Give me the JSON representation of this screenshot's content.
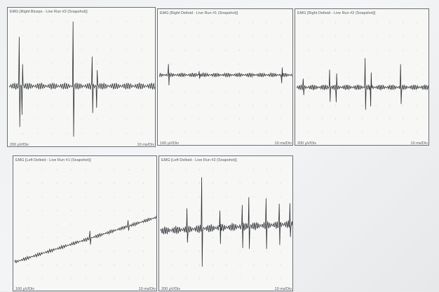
{
  "panels": [
    {
      "title": "EMG [Right Biceps - Live Run #3 (Snapshot)]",
      "y_scale": "200 µV/Div",
      "x_scale": "10 ms/Div"
    },
    {
      "title": "EMG [Right Deltoid - Live Run #1 (Snapshot)]",
      "y_scale": "100 µV/Div",
      "x_scale": "10 ms/Div"
    },
    {
      "title": "EMG [Right Deltoid - Live Run #2 (Snapshot)]",
      "y_scale": "200 µV/Div",
      "x_scale": "10 ms/Div"
    },
    {
      "title": "EMG [Left Deltoid - Live Run #1 (Snapshot)]",
      "y_scale": "100 µV/Div",
      "x_scale": "10 ms/Div"
    },
    {
      "title": "EMG [Left Deltoid - Live Run #2 (Snapshot)]",
      "y_scale": "200 µV/Div",
      "x_scale": "10 ms/Div"
    }
  ]
}
